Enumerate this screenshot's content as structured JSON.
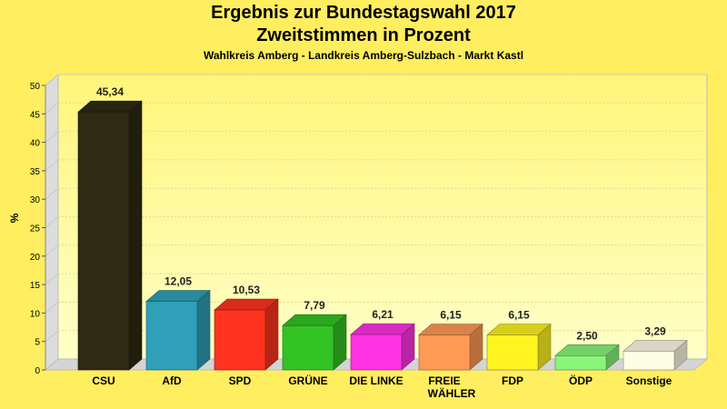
{
  "chart_data": {
    "type": "bar",
    "title": "Ergebnis zur Bundestagswahl 2017",
    "subtitle": "Zweitstimmen in Prozent",
    "subtitle2": "Wahlkreis Amberg - Landkreis Amberg-Sulzbach - Markt Kastl",
    "ylabel": "%",
    "xlabel": "",
    "ylim": [
      0,
      50
    ],
    "yticks": [
      "0",
      "5",
      "10",
      "15",
      "20",
      "25",
      "30",
      "35",
      "40",
      "45",
      "50"
    ],
    "grid": true,
    "legend": "none",
    "categories": [
      {
        "label": "CSU",
        "value": 45.34,
        "value_label": "45,34",
        "color": "#2E2A14"
      },
      {
        "label": "AfD",
        "value": 12.05,
        "value_label": "12,05",
        "color": "#2FA0B8"
      },
      {
        "label": "SPD",
        "value": 10.53,
        "value_label": "10,53",
        "color": "#FF3320"
      },
      {
        "label": "GRÜNE",
        "value": 7.79,
        "value_label": "7,79",
        "color": "#33C324"
      },
      {
        "label": "DIE LINKE",
        "value": 6.21,
        "value_label": "6,21",
        "color": "#FF33E4"
      },
      {
        "label": "FREIE WÄHLER",
        "value": 6.15,
        "value_label": "6,15",
        "color": "#FF9A55"
      },
      {
        "label": "FDP",
        "value": 6.15,
        "value_label": "6,15",
        "color": "#FFF41F"
      },
      {
        "label": "ÖDP",
        "value": 2.5,
        "value_label": "2,50",
        "color": "#8AF57A"
      },
      {
        "label": "Sonstige",
        "value": 3.29,
        "value_label": "3,29",
        "color": "#FFFCE6"
      }
    ]
  }
}
